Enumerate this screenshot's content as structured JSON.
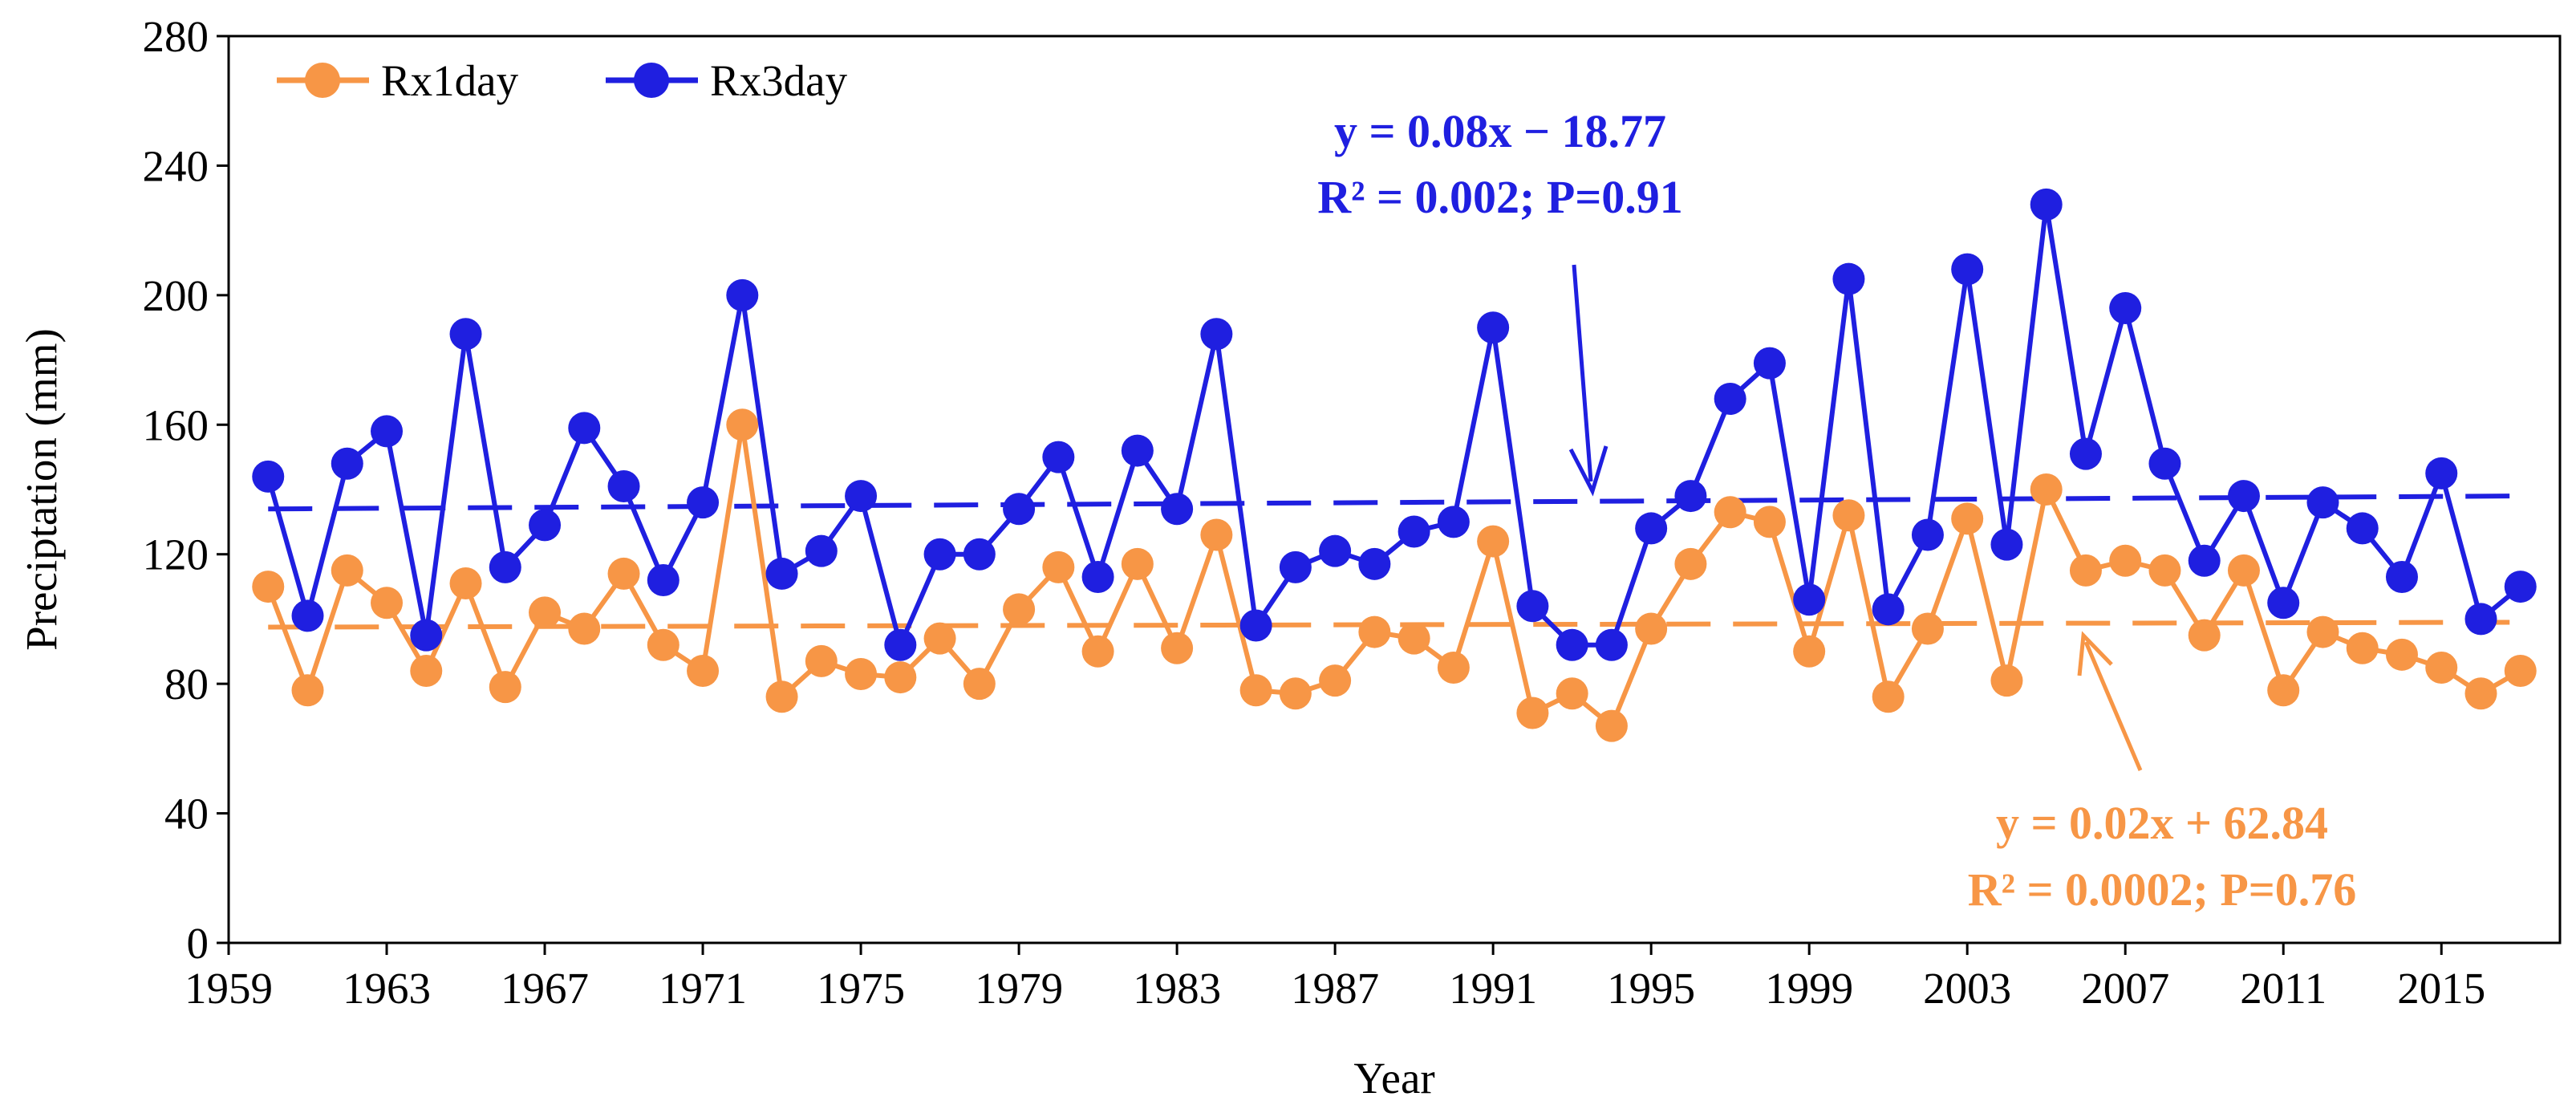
{
  "chart_data": {
    "type": "line",
    "title": "",
    "xlabel": "Year",
    "ylabel": "Preciptation (mm)",
    "xlim": [
      1959,
      2018
    ],
    "ylim": [
      0,
      280
    ],
    "xticks": [
      1959,
      1963,
      1967,
      1971,
      1975,
      1979,
      1983,
      1987,
      1991,
      1995,
      1999,
      2003,
      2007,
      2011,
      2015
    ],
    "yticks": [
      0,
      40,
      80,
      120,
      160,
      200,
      240,
      280
    ],
    "grid": false,
    "legend_position": "top-left",
    "x": [
      1960,
      1961,
      1962,
      1963,
      1964,
      1965,
      1966,
      1967,
      1968,
      1969,
      1970,
      1971,
      1972,
      1973,
      1974,
      1975,
      1976,
      1977,
      1978,
      1979,
      1980,
      1981,
      1982,
      1983,
      1984,
      1985,
      1986,
      1987,
      1988,
      1989,
      1990,
      1991,
      1992,
      1993,
      1994,
      1995,
      1996,
      1997,
      1998,
      1999,
      2000,
      2001,
      2002,
      2003,
      2004,
      2005,
      2006,
      2007,
      2008,
      2009,
      2010,
      2011,
      2012,
      2013,
      2014,
      2015,
      2016,
      2017
    ],
    "series": [
      {
        "name": "Rx1day",
        "color": "#F79646",
        "values": [
          110,
          78,
          115,
          105,
          84,
          111,
          79,
          102,
          97,
          114,
          92,
          84,
          160,
          76,
          87,
          83,
          82,
          94,
          80,
          103,
          116,
          90,
          117,
          91,
          126,
          78,
          77,
          81,
          96,
          94,
          85,
          124,
          71,
          77,
          67,
          97,
          117,
          133,
          130,
          90,
          132,
          76,
          97,
          131,
          81,
          140,
          115,
          118,
          115,
          95,
          115,
          78,
          96,
          91,
          89,
          85,
          77,
          84
        ]
      },
      {
        "name": "Rx3day",
        "color": "#1F1FE0",
        "values": [
          144,
          101,
          148,
          158,
          95,
          188,
          116,
          129,
          159,
          141,
          112,
          136,
          200,
          114,
          121,
          138,
          92,
          120,
          120,
          134,
          150,
          113,
          152,
          134,
          188,
          98,
          116,
          121,
          117,
          127,
          130,
          190,
          104,
          92,
          92,
          128,
          138,
          168,
          179,
          106,
          205,
          103,
          126,
          208,
          123,
          228,
          151,
          196,
          148,
          118,
          138,
          105,
          136,
          128,
          113,
          145,
          100,
          110
        ]
      }
    ],
    "trendlines": [
      {
        "series": "Rx3day",
        "color": "#1F1FE0",
        "y_start": 134,
        "y_end": 138,
        "equation": "y = 0.08x − 18.77",
        "stats": "R² = 0.002; P=0.91"
      },
      {
        "series": "Rx1day",
        "color": "#F79646",
        "y_start": 97.5,
        "y_end": 99,
        "equation": "y = 0.02x + 62.84",
        "stats": "R² = 0.0002; P=0.76"
      }
    ]
  }
}
